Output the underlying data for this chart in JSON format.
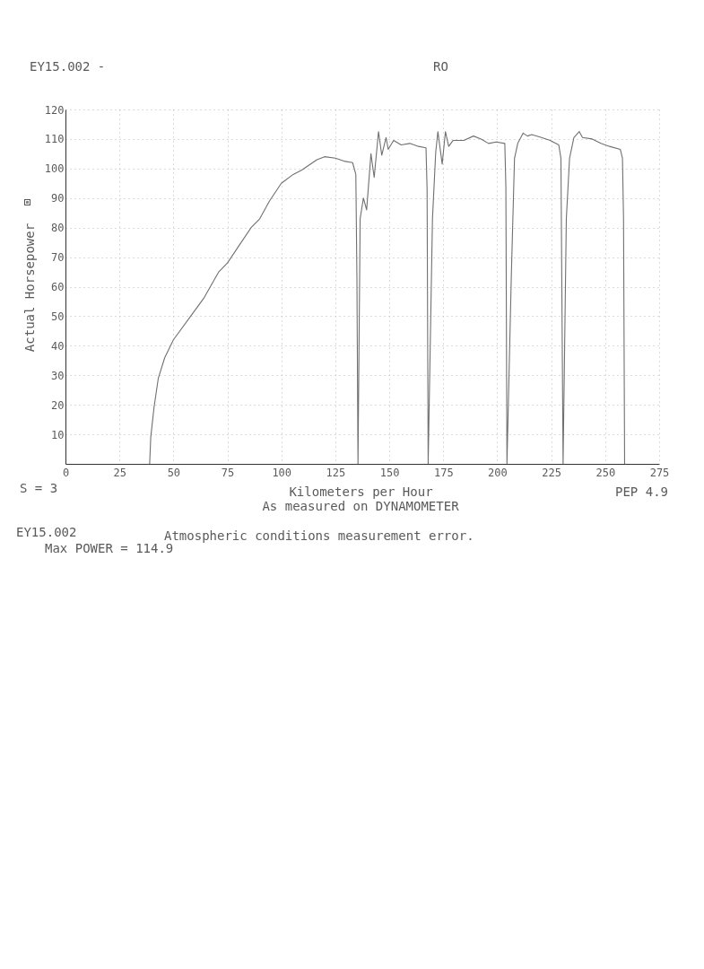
{
  "chart_data": {
    "type": "line",
    "title": "EY15.002 -",
    "xlabel": "Kilometers per Hour",
    "ylabel": "Actual Horsepower",
    "annotations": [
      "RO",
      "S = 3",
      "PEP 4.9",
      "As measured on DYNAMOMETER",
      "EY15.002",
      "Atmospheric conditions measurement error.",
      "Max POWER = 114.9"
    ],
    "x": [
      39,
      39.5,
      41,
      43,
      46,
      50,
      58,
      64,
      71,
      75,
      80.5,
      86,
      90,
      94.5,
      100,
      105.5,
      109.5,
      112.5,
      116.5,
      120,
      125,
      129,
      133,
      134.5,
      135,
      135.5,
      136.5,
      138,
      139.5,
      141.5,
      143,
      145,
      146.5,
      148.5,
      149.5,
      152,
      155.5,
      159.5,
      163.5,
      167,
      167.5,
      168,
      170,
      171.5,
      172.5,
      174.5,
      176,
      177.5,
      179.5,
      184.5,
      189,
      192.5,
      196,
      199.5,
      203.5,
      204,
      204.5,
      206.5,
      208,
      209.5,
      212,
      214,
      216,
      220.5,
      224.5,
      228.5,
      229.5,
      230.5,
      232,
      233.5,
      235.5,
      238,
      239.5,
      244,
      248,
      252,
      257,
      258,
      258.5,
      259
    ],
    "series": [
      {
        "color": "#707070",
        "values": [
          0,
          9,
          19,
          29,
          36,
          42,
          50,
          56,
          65,
          68,
          74,
          80,
          83,
          89,
          95,
          98,
          99.5,
          101,
          103,
          104,
          103.5,
          102.5,
          102,
          98,
          63,
          0,
          83,
          90,
          86,
          105,
          97,
          112.5,
          104.5,
          110.5,
          106.5,
          109.5,
          108,
          108.5,
          107.5,
          107,
          93,
          0,
          83,
          105.5,
          112.5,
          101.5,
          112.5,
          107.5,
          109.5,
          109.5,
          111,
          110,
          108.5,
          109,
          108.5,
          93.5,
          0,
          63,
          103.5,
          108.5,
          112,
          111,
          111.5,
          110.5,
          109.5,
          108,
          103.5,
          0,
          83,
          103.5,
          110.5,
          112.5,
          110.5,
          110,
          108.5,
          107.5,
          106.5,
          103.5,
          83,
          0
        ]
      }
    ],
    "xlim": [
      0,
      275
    ],
    "ylim": [
      0,
      120
    ],
    "xticks": [
      0,
      25,
      50,
      75,
      100,
      125,
      150,
      175,
      200,
      225,
      250,
      275
    ],
    "yticks": [
      10,
      20,
      30,
      40,
      50,
      60,
      70,
      80,
      90,
      100,
      110,
      120
    ],
    "grid": true
  }
}
